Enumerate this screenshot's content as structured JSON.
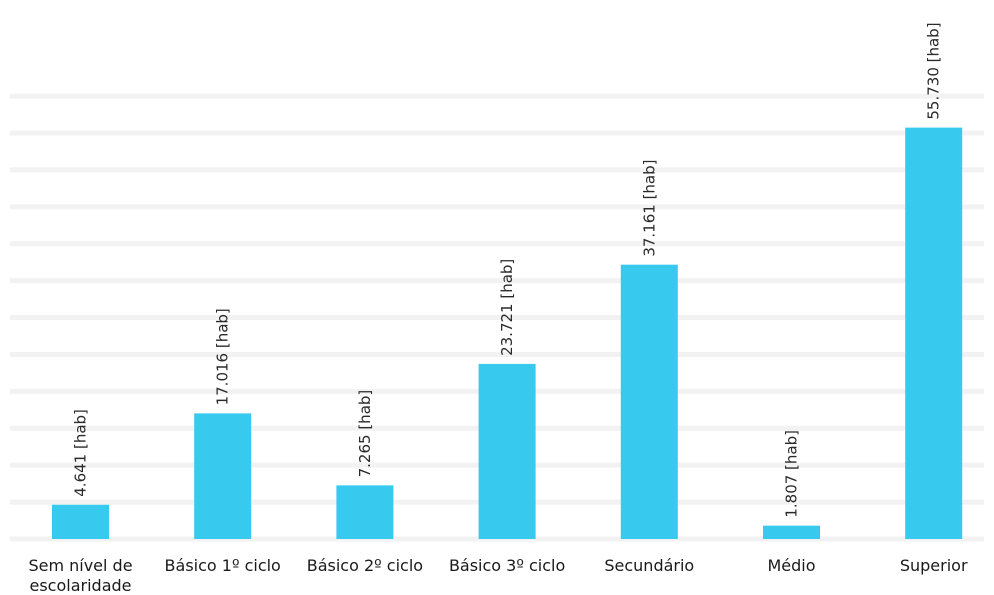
{
  "chart_data": {
    "type": "bar",
    "categories": [
      [
        "Sem nível de",
        "escolaridade"
      ],
      [
        "Básico 1º ciclo"
      ],
      [
        "Básico 2º ciclo"
      ],
      [
        "Básico 3º ciclo"
      ],
      [
        "Secundário"
      ],
      [
        "Médio"
      ],
      [
        "Superior"
      ]
    ],
    "values": [
      4641,
      17016,
      7265,
      23721,
      37161,
      1807,
      55730
    ],
    "value_labels": [
      "4.641 [hab]",
      "17.016 [hab]",
      "7.265 [hab]",
      "23.721 [hab]",
      "37.161 [hab]",
      "1.807 [hab]",
      "55.730 [hab]"
    ],
    "ylim": [
      0,
      60000
    ],
    "grid": true,
    "bar_color": "#38c9ef",
    "grid_color": "#f2f2f2",
    "title": "",
    "xlabel": "",
    "ylabel": ""
  }
}
